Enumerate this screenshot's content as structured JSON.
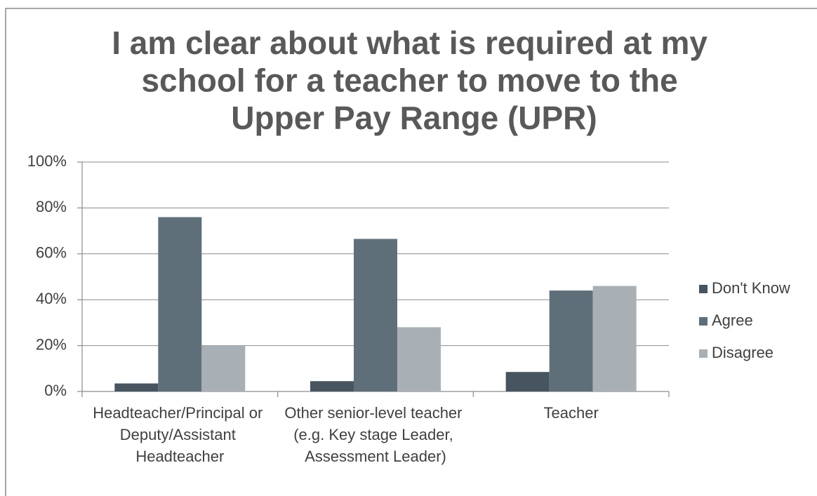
{
  "chart_data": {
    "type": "bar",
    "title": "I am clear about what is required at my school for a teacher to move to the Upper Pay Range (UPR)",
    "categories": [
      "Headteacher/Principal or Deputy/Assistant Headteacher",
      "Other senior-level teacher (e.g. Key stage Leader, Assessment Leader)",
      "Teacher"
    ],
    "series": [
      {
        "name": "Don't Know",
        "color": "#46555f",
        "values": [
          3.5,
          4.5,
          8.5
        ]
      },
      {
        "name": "Agree",
        "color": "#5f6f7a",
        "values": [
          76,
          66.5,
          44
        ]
      },
      {
        "name": "Disagree",
        "color": "#a9b0b5",
        "values": [
          20,
          28,
          46
        ]
      }
    ],
    "ylim": [
      0,
      100
    ],
    "yticks": [
      {
        "value": 0,
        "label": "0%"
      },
      {
        "value": 20,
        "label": "20%"
      },
      {
        "value": 40,
        "label": "40%"
      },
      {
        "value": 60,
        "label": "60%"
      },
      {
        "value": 80,
        "label": "80%"
      },
      {
        "value": 100,
        "label": "100%"
      }
    ],
    "grid": true,
    "legend": "right"
  }
}
